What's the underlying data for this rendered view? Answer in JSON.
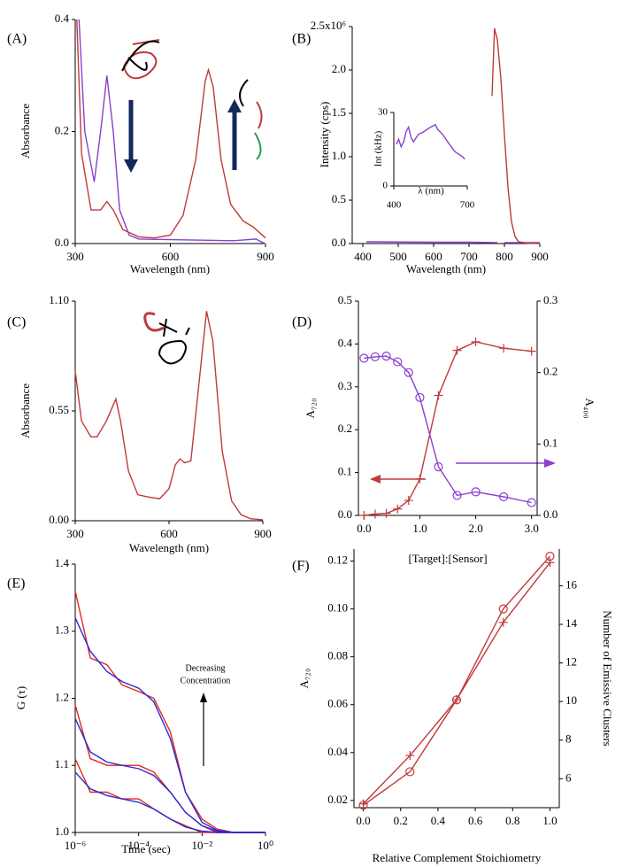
{
  "chart_data": [
    {
      "type": "line",
      "panel": "(A)",
      "xlabel": "Wavelength (nm)",
      "ylabel": "Absorbance",
      "xlim": [
        300,
        900
      ],
      "xticks": [
        300,
        600,
        900
      ],
      "ylim": [
        0,
        0.4
      ],
      "yticks": [
        {
          "value": 0,
          "label": "0.0"
        },
        0.2,
        0.4
      ],
      "series": [
        {
          "color": "#8a3fd1",
          "x": [
            312,
            330,
            360,
            380,
            400,
            420,
            440,
            470,
            500,
            600,
            700,
            800,
            870,
            890,
            900
          ],
          "values": [
            0.4,
            0.2,
            0.11,
            0.2,
            0.3,
            0.2,
            0.06,
            0.015,
            0.008,
            0.007,
            0.006,
            0.005,
            0.008,
            0.002,
            0.0
          ]
        },
        {
          "color": "#c0393b",
          "x": [
            305,
            320,
            350,
            380,
            400,
            420,
            450,
            500,
            550,
            600,
            640,
            680,
            710,
            720,
            735,
            760,
            790,
            830,
            860,
            900
          ],
          "values": [
            0.4,
            0.16,
            0.06,
            0.06,
            0.075,
            0.06,
            0.025,
            0.012,
            0.01,
            0.015,
            0.05,
            0.15,
            0.29,
            0.31,
            0.28,
            0.15,
            0.07,
            0.04,
            0.03,
            0.01
          ]
        }
      ]
    },
    {
      "type": "line",
      "panel": "(B)",
      "xlabel": "Wavelength (nm)",
      "ylabel": "Intensity (cps)",
      "xlim": [
        370,
        900
      ],
      "xticks": [
        400,
        500,
        600,
        700,
        800,
        900
      ],
      "ylim": [
        0,
        2500000
      ],
      "yticks": [
        {
          "value": 0,
          "label": "0.0"
        },
        {
          "value": 500000,
          "label": "0.5"
        },
        {
          "value": 1000000,
          "label": "1.0"
        },
        {
          "value": 1500000,
          "label": "1.5"
        },
        {
          "value": 2000000,
          "label": "2.0"
        },
        {
          "value": 2500000,
          "label": "2.5x10⁶"
        }
      ],
      "series": [
        {
          "color": "#8a3fd1",
          "x": [
            410,
            600,
            700,
            780,
            790,
            800,
            900
          ],
          "values": [
            20000,
            15000,
            15000,
            10000,
            null,
            10000,
            10000
          ]
        },
        {
          "color": "#c0393b",
          "x": [
            765,
            772,
            780,
            790,
            800,
            810,
            820,
            830,
            840,
            860,
            900
          ],
          "values": [
            1700000,
            2480000,
            2350000,
            1900000,
            1250000,
            650000,
            250000,
            80000,
            20000,
            5000,
            0
          ]
        }
      ]
    },
    {
      "type": "line",
      "panel": "(C)",
      "xlabel": "Wavelength (nm)",
      "ylabel": "Absorbance",
      "xlim": [
        300,
        900
      ],
      "xticks": [
        300,
        600,
        900
      ],
      "ylim": [
        0,
        1.1
      ],
      "yticks": [
        {
          "value": 0,
          "label": "0.00"
        },
        0.55,
        {
          "value": 1.1,
          "label": "1.10"
        }
      ],
      "series": [
        {
          "color": "#c0393b",
          "x": [
            300,
            320,
            350,
            370,
            400,
            430,
            445,
            470,
            500,
            530,
            570,
            600,
            620,
            635,
            650,
            670,
            700,
            720,
            740,
            770,
            800,
            830,
            860,
            900
          ],
          "values": [
            0.75,
            0.5,
            0.42,
            0.42,
            0.5,
            0.61,
            0.5,
            0.25,
            0.13,
            0.12,
            0.11,
            0.16,
            0.28,
            0.31,
            0.29,
            0.3,
            0.75,
            1.05,
            0.9,
            0.35,
            0.1,
            0.03,
            0.01,
            0.005
          ]
        }
      ]
    },
    {
      "type": "line",
      "panel": "(D)",
      "xlabel": "[Target]:[Sensor]",
      "ylabel": "A₇₂₀",
      "y2label": "A₄₀₀",
      "xlim": [
        -0.1,
        3.1
      ],
      "xticks": [
        {
          "value": 0,
          "label": "0.0"
        },
        {
          "value": 1,
          "label": "1.0"
        },
        {
          "value": 2,
          "label": "2.0"
        },
        {
          "value": 3,
          "label": "3.0"
        }
      ],
      "ylim": [
        0,
        0.5
      ],
      "yticks": [
        {
          "value": 0,
          "label": "0.0"
        },
        0.1,
        0.2,
        0.3,
        0.4,
        0.5
      ],
      "y2lim": [
        0,
        0.3
      ],
      "y2ticks": [
        {
          "value": 0,
          "label": "0.0"
        },
        0.1,
        0.2,
        0.3
      ],
      "x": [
        0,
        0.2,
        0.4,
        0.6,
        0.8,
        1.0,
        1.333,
        1.667,
        2.0,
        2.5,
        3.0
      ],
      "series": [
        {
          "color": "#c0393b",
          "marker": "plus",
          "values": [
            0,
            0.003,
            0.005,
            0.015,
            0.035,
            0.085,
            0.28,
            0.385,
            0.405,
            0.39,
            0.383
          ]
        },
        {
          "color": "#8a3fd1",
          "marker": "circle",
          "axis": "y2",
          "values": [
            0.22,
            0.222,
            0.223,
            0.215,
            0.2,
            0.165,
            0.068,
            0.028,
            0.033,
            0.026,
            0.018
          ]
        }
      ]
    },
    {
      "type": "line",
      "panel": "(E)",
      "xlabel": "Time (sec)",
      "ylabel": "G (τ)",
      "xscale": "log",
      "annotation": [
        "Decreasing",
        "Concentration"
      ],
      "xlim": [
        1e-06,
        1
      ],
      "xticks": [
        {
          "value": 1e-06,
          "label": "10⁻⁶"
        },
        {
          "value": 0.0001,
          "label": "10⁻⁴"
        },
        {
          "value": 0.01,
          "label": "10⁻²"
        },
        {
          "value": 1,
          "label": "10⁰"
        }
      ],
      "ylim": [
        1.0,
        1.4
      ],
      "yticks": [
        {
          "value": 1.0,
          "label": "1.0"
        },
        1.1,
        1.2,
        1.3,
        1.4
      ],
      "x": [
        1e-06,
        3e-06,
        1e-05,
        3e-05,
        0.0001,
        0.0003,
        0.001,
        0.003,
        0.01,
        0.03,
        0.1,
        1
      ],
      "series": [
        {
          "color": "#e8271f",
          "values": [
            1.36,
            1.26,
            1.25,
            1.22,
            1.21,
            1.2,
            1.15,
            1.06,
            1.02,
            1.005,
            1.0,
            1.0
          ]
        },
        {
          "color": "#e8271f",
          "values": [
            1.19,
            1.11,
            1.1,
            1.1,
            1.1,
            1.09,
            1.06,
            1.03,
            1.01,
            1.0,
            1.0,
            1.0
          ]
        },
        {
          "color": "#e8271f",
          "values": [
            1.11,
            1.06,
            1.06,
            1.05,
            1.05,
            1.035,
            1.02,
            1.01,
            1.0,
            1.0,
            1.0,
            1.0
          ]
        },
        {
          "color": "#2a2ad6",
          "values": [
            1.32,
            1.27,
            1.24,
            1.225,
            1.215,
            1.195,
            1.14,
            1.06,
            1.015,
            1.003,
            1.0,
            1.0
          ]
        },
        {
          "color": "#2a2ad6",
          "values": [
            1.17,
            1.12,
            1.105,
            1.1,
            1.095,
            1.085,
            1.06,
            1.03,
            1.01,
            1.002,
            1.0,
            1.0
          ]
        },
        {
          "color": "#2a2ad6",
          "values": [
            1.09,
            1.065,
            1.055,
            1.05,
            1.045,
            1.035,
            1.02,
            1.008,
            1.002,
            1.0,
            1.0,
            1.0
          ]
        }
      ]
    },
    {
      "type": "line",
      "panel": "(F)",
      "xlabel": "Relative Complement Stoichiometry",
      "ylabel": "A₇₂₀",
      "y2label": "Number of Emissive Clusters",
      "xlim": [
        -0.05,
        1.05
      ],
      "xticks": [
        {
          "value": 0,
          "label": "0.0"
        },
        0.2,
        0.4,
        0.6,
        0.8,
        {
          "value": 1,
          "label": "1.0"
        }
      ],
      "ylim": [
        0.017,
        0.125
      ],
      "yticks": [
        0.02,
        0.04,
        0.06,
        0.08,
        {
          "value": 0.1,
          "label": "0.10"
        },
        0.12
      ],
      "y2lim": [
        4.5,
        17.9
      ],
      "y2ticks": [
        6,
        8,
        10,
        12,
        14,
        16
      ],
      "x": [
        0,
        0.25,
        0.5,
        0.75,
        1.0
      ],
      "series": [
        {
          "color": "#c0393b",
          "marker": "circle",
          "values": [
            0.018,
            0.032,
            0.062,
            0.1,
            0.122
          ]
        },
        {
          "color": "#c0393b",
          "marker": "plus",
          "axis": "y2",
          "values": [
            4.7,
            7.2,
            10.1,
            14.1,
            17.2
          ]
        }
      ]
    },
    {
      "type": "line",
      "xlabel": "λ (nm)",
      "ylabel": "Int (kHz)",
      "xlim": [
        400,
        700
      ],
      "xticks": [
        400,
        700
      ],
      "ylim": [
        0,
        30
      ],
      "yticks": [
        0,
        30
      ],
      "series": [
        {
          "color": "#8a3fd1",
          "x": [
            410,
            420,
            430,
            440,
            450,
            460,
            470,
            480,
            500,
            520,
            550,
            570,
            580,
            600,
            620,
            650,
            680,
            690
          ],
          "values": [
            17,
            19,
            16,
            18,
            22,
            24,
            20,
            18,
            21,
            22,
            24,
            25,
            23,
            21,
            18,
            14,
            12,
            11
          ]
        }
      ]
    }
  ]
}
